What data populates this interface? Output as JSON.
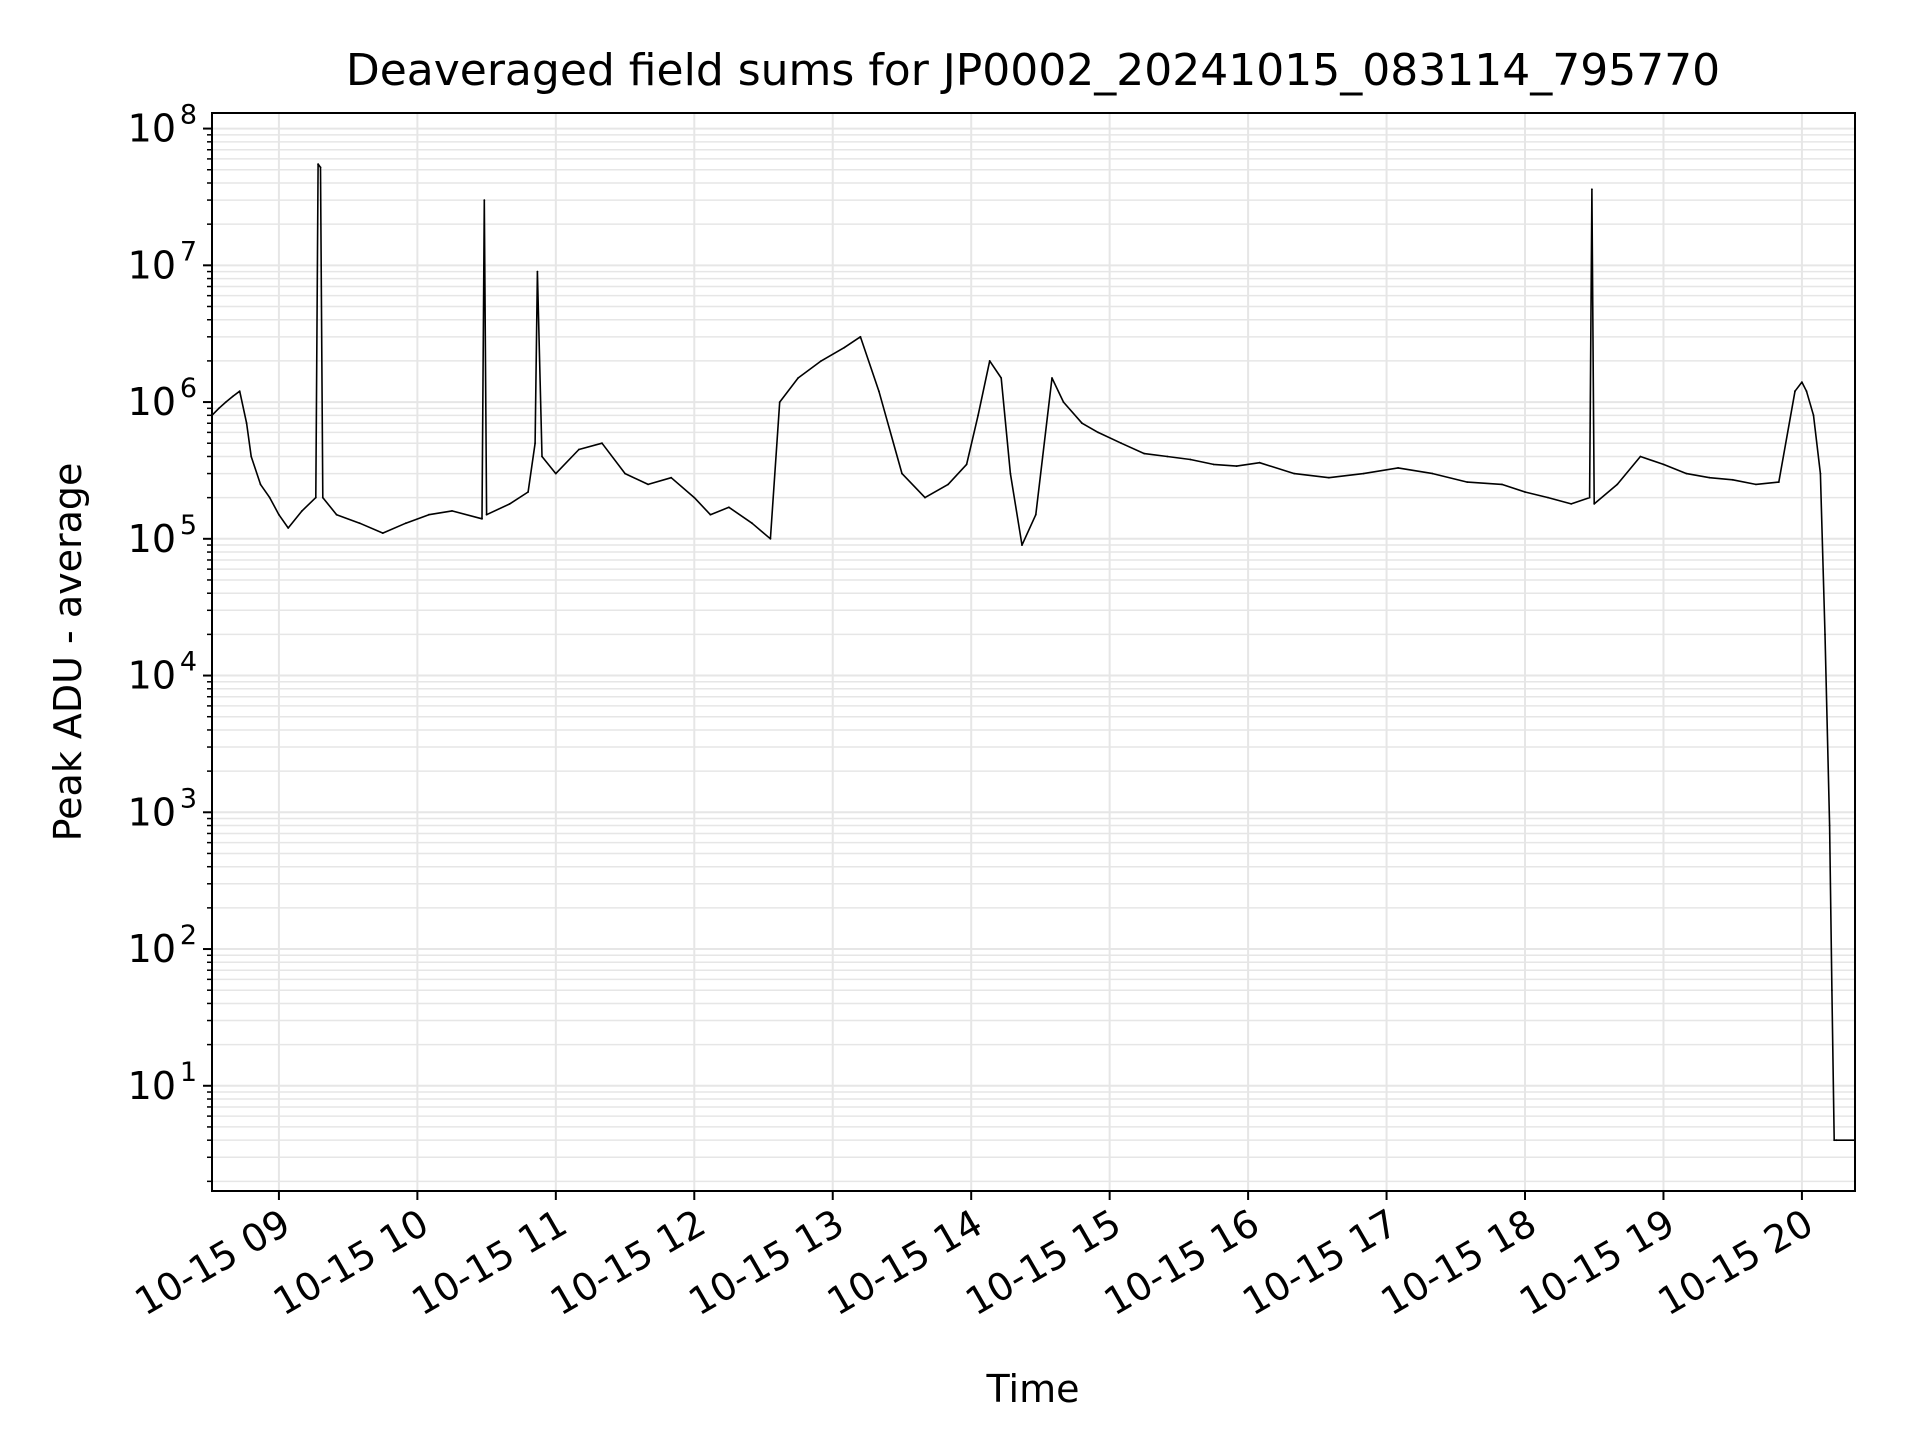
{
  "chart_data": {
    "type": "line",
    "title": "Deaveraged field sums for JP0002_20241015_083114_795770",
    "xlabel": "Time",
    "ylabel": "Peak ADU - average",
    "y_scale": "log",
    "y_tick_base": "10",
    "y_tick_exponents": [
      "1",
      "2",
      "3",
      "4",
      "5",
      "6",
      "7",
      "8"
    ],
    "x_tick_labels": [
      "10-15 09",
      "10-15 10",
      "10-15 11",
      "10-15 12",
      "10-15 13",
      "10-15 14",
      "10-15 15",
      "10-15 16",
      "10-15 17",
      "10-15 18",
      "10-15 19",
      "10-15 20"
    ],
    "x_tick_times": [
      "2024-10-15 09:00",
      "2024-10-15 10:00",
      "2024-10-15 11:00",
      "2024-10-15 12:00",
      "2024-10-15 13:00",
      "2024-10-15 14:00",
      "2024-10-15 15:00",
      "2024-10-15 16:00",
      "2024-10-15 17:00",
      "2024-10-15 18:00",
      "2024-10-15 19:00",
      "2024-10-15 20:00"
    ],
    "xlim": [
      "2024-10-15 08:31",
      "2024-10-15 20:23"
    ],
    "ylim": [
      1.7,
      130000000
    ],
    "grid": true,
    "line_color": "#000000",
    "grid_color": "#e6e6e6",
    "series": [
      {
        "x": [
          "2024-10-15 08:31",
          "2024-10-15 08:34",
          "2024-10-15 08:37",
          "2024-10-15 08:40",
          "2024-10-15 08:43",
          "2024-10-15 08:46",
          "2024-10-15 08:48",
          "2024-10-15 08:52",
          "2024-10-15 08:56",
          "2024-10-15 09:00",
          "2024-10-15 09:04",
          "2024-10-15 09:10",
          "2024-10-15 09:16",
          "2024-10-15 09:17",
          "2024-10-15 09:18",
          "2024-10-15 09:19",
          "2024-10-15 09:25",
          "2024-10-15 09:35",
          "2024-10-15 09:45",
          "2024-10-15 09:55",
          "2024-10-15 10:05",
          "2024-10-15 10:15",
          "2024-10-15 10:28",
          "2024-10-15 10:29",
          "2024-10-15 10:30",
          "2024-10-15 10:40",
          "2024-10-15 10:48",
          "2024-10-15 10:51",
          "2024-10-15 10:52",
          "2024-10-15 10:54",
          "2024-10-15 11:00",
          "2024-10-15 11:10",
          "2024-10-15 11:20",
          "2024-10-15 11:30",
          "2024-10-15 11:40",
          "2024-10-15 11:50",
          "2024-10-15 12:00",
          "2024-10-15 12:07",
          "2024-10-15 12:15",
          "2024-10-15 12:25",
          "2024-10-15 12:33",
          "2024-10-15 12:37",
          "2024-10-15 12:45",
          "2024-10-15 12:55",
          "2024-10-15 13:05",
          "2024-10-15 13:12",
          "2024-10-15 13:20",
          "2024-10-15 13:30",
          "2024-10-15 13:40",
          "2024-10-15 13:50",
          "2024-10-15 13:58",
          "2024-10-15 14:03",
          "2024-10-15 14:08",
          "2024-10-15 14:13",
          "2024-10-15 14:17",
          "2024-10-15 14:22",
          "2024-10-15 14:28",
          "2024-10-15 14:31",
          "2024-10-15 14:35",
          "2024-10-15 14:40",
          "2024-10-15 14:48",
          "2024-10-15 14:55",
          "2024-10-15 15:05",
          "2024-10-15 15:15",
          "2024-10-15 15:25",
          "2024-10-15 15:35",
          "2024-10-15 15:45",
          "2024-10-15 15:55",
          "2024-10-15 16:05",
          "2024-10-15 16:20",
          "2024-10-15 16:35",
          "2024-10-15 16:50",
          "2024-10-15 17:05",
          "2024-10-15 17:20",
          "2024-10-15 17:35",
          "2024-10-15 17:50",
          "2024-10-15 18:00",
          "2024-10-15 18:10",
          "2024-10-15 18:20",
          "2024-10-15 18:28",
          "2024-10-15 18:29",
          "2024-10-15 18:30",
          "2024-10-15 18:40",
          "2024-10-15 18:50",
          "2024-10-15 19:00",
          "2024-10-15 19:10",
          "2024-10-15 19:20",
          "2024-10-15 19:30",
          "2024-10-15 19:40",
          "2024-10-15 19:50",
          "2024-10-15 19:57",
          "2024-10-15 20:00",
          "2024-10-15 20:02",
          "2024-10-15 20:05",
          "2024-10-15 20:08",
          "2024-10-15 20:10",
          "2024-10-15 20:12",
          "2024-10-15 20:13",
          "2024-10-15 20:14",
          "2024-10-15 20:15",
          "2024-10-15 20:23"
        ],
        "y": [
          800000,
          900000,
          1000000,
          1100000,
          1200000,
          700000,
          400000,
          250000,
          200000,
          150000,
          120000,
          160000,
          200000,
          55000000,
          52000000,
          200000,
          150000,
          130000,
          110000,
          130000,
          150000,
          160000,
          140000,
          30000000,
          150000,
          180000,
          220000,
          500000,
          9000000,
          400000,
          300000,
          450000,
          500000,
          300000,
          250000,
          280000,
          200000,
          150000,
          170000,
          130000,
          100000,
          1000000,
          1500000,
          2000000,
          2500000,
          3000000,
          1200000,
          300000,
          200000,
          250000,
          350000,
          800000,
          2000000,
          1500000,
          300000,
          90000,
          150000,
          400000,
          1500000,
          1000000,
          700000,
          600000,
          500000,
          420000,
          400000,
          380000,
          350000,
          340000,
          360000,
          300000,
          280000,
          300000,
          330000,
          300000,
          260000,
          250000,
          220000,
          200000,
          180000,
          200000,
          36000000,
          180000,
          250000,
          400000,
          350000,
          300000,
          280000,
          270000,
          250000,
          260000,
          1200000,
          1400000,
          1200000,
          800000,
          300000,
          20000,
          800,
          50,
          4,
          4,
          4
        ]
      }
    ]
  }
}
